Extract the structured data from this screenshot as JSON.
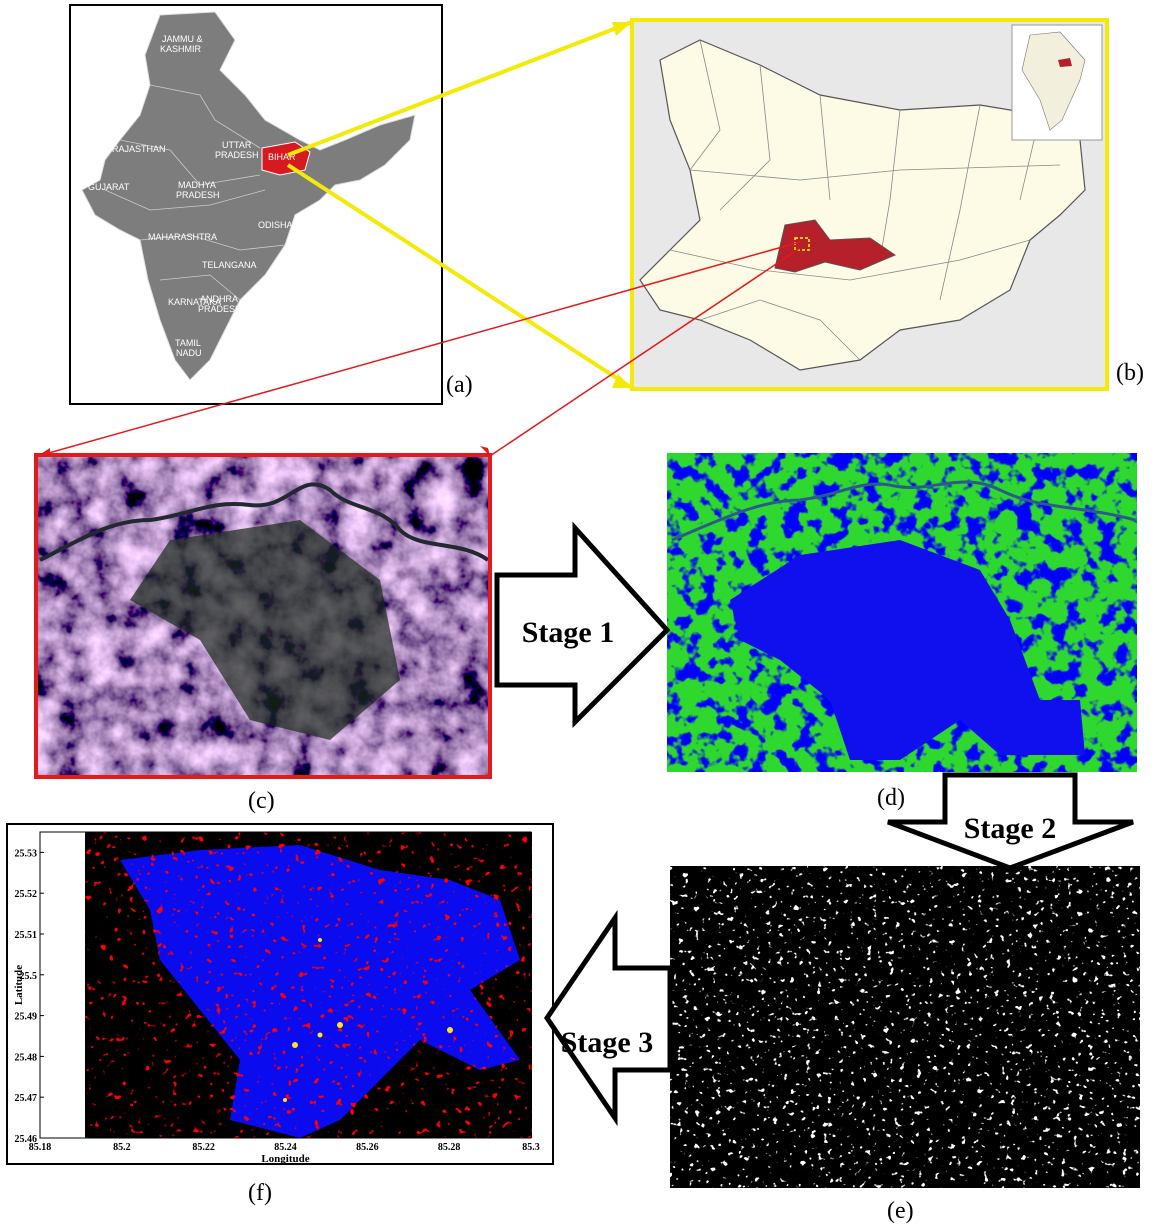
{
  "panels": {
    "a": "(a)",
    "b": "(b)",
    "c": "(c)",
    "d": "(d)",
    "e": "(e)",
    "f": "(f)"
  },
  "stages": [
    "Stage 1",
    "Stage 2",
    "Stage 3"
  ],
  "map_labels": [
    "JAMMU &",
    "KASHMIR",
    "RAJASTHAN",
    "UTTAR",
    "PRADESH",
    "BIHAR",
    "MADHYA",
    "PRADESH",
    "GUJARAT",
    "MAHARASHTRA",
    "ODISHA",
    "TELANGANA",
    "ANDHRA",
    "PRADESH",
    "KARNATAKA",
    "TAMIL",
    "NADU"
  ],
  "plot": {
    "xlabel": "Longitude",
    "ylabel": "Latitude",
    "xlim": [
      85.18,
      85.3
    ],
    "ylim": [
      25.46,
      25.535
    ],
    "xticks": [
      85.18,
      85.2,
      85.22,
      85.24,
      85.26,
      85.28,
      85.3
    ],
    "yticks": [
      25.46,
      25.47,
      25.48,
      25.49,
      25.5,
      25.51,
      25.52,
      25.53
    ]
  }
}
